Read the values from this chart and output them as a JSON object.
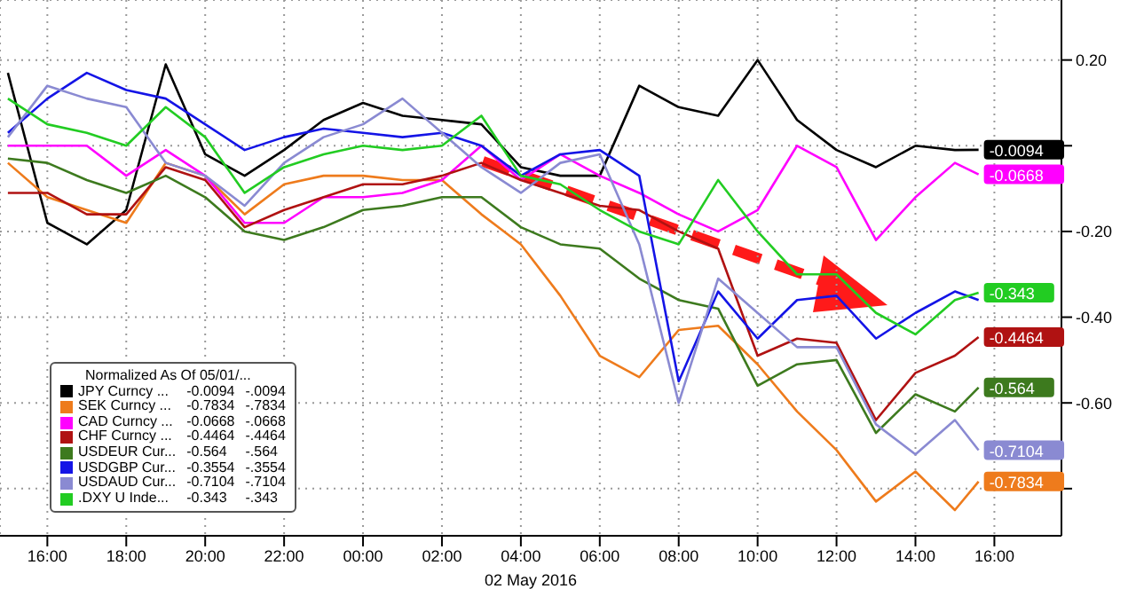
{
  "chart_data": {
    "type": "line",
    "xlabel": "02 May 2016",
    "legend_title": "Normalized As Of 05/01/...",
    "x": [
      "2016-05-01T15:00",
      "2016-05-01T16:00",
      "2016-05-01T17:00",
      "2016-05-01T18:00",
      "2016-05-01T19:00",
      "2016-05-01T20:00",
      "2016-05-01T21:00",
      "2016-05-01T22:00",
      "2016-05-01T23:00",
      "2016-05-02T00:00",
      "2016-05-02T01:00",
      "2016-05-02T02:00",
      "2016-05-02T03:00",
      "2016-05-02T04:00",
      "2016-05-02T05:00",
      "2016-05-02T06:00",
      "2016-05-02T07:00",
      "2016-05-02T08:00",
      "2016-05-02T09:00",
      "2016-05-02T10:00",
      "2016-05-02T11:00",
      "2016-05-02T12:00",
      "2016-05-02T13:00",
      "2016-05-02T14:00",
      "2016-05-02T15:00",
      "2016-05-02T15:36"
    ],
    "xlim": [
      "2016-05-01T14:48",
      "2016-05-02T17:42"
    ],
    "xticks": [
      {
        "value": "2016-05-01T16:00",
        "label": "16:00"
      },
      {
        "value": "2016-05-01T18:00",
        "label": "18:00"
      },
      {
        "value": "2016-05-01T20:00",
        "label": "20:00"
      },
      {
        "value": "2016-05-01T22:00",
        "label": "22:00"
      },
      {
        "value": "2016-05-02T00:00",
        "label": "00:00"
      },
      {
        "value": "2016-05-02T02:00",
        "label": "02:00"
      },
      {
        "value": "2016-05-02T04:00",
        "label": "04:00"
      },
      {
        "value": "2016-05-02T06:00",
        "label": "06:00"
      },
      {
        "value": "2016-05-02T08:00",
        "label": "08:00"
      },
      {
        "value": "2016-05-02T10:00",
        "label": "10:00"
      },
      {
        "value": "2016-05-02T12:00",
        "label": "12:00"
      },
      {
        "value": "2016-05-02T14:00",
        "label": "14:00"
      },
      {
        "value": "2016-05-02T16:00",
        "label": "16:00"
      }
    ],
    "ylim": [
      -0.91,
      0.34
    ],
    "yticks": [
      {
        "value": 0.2,
        "label": "0.20"
      },
      {
        "value": 0,
        "label": null
      },
      {
        "value": -0.2,
        "label": "-0.20"
      },
      {
        "value": -0.4,
        "label": "-0.40"
      },
      {
        "value": -0.6,
        "label": "-0.60"
      },
      {
        "value": -0.8,
        "label": null
      }
    ],
    "grid": true,
    "legend": "bottom left",
    "line_style": "solid",
    "series": [
      {
        "name": "JPY Curncy ...",
        "color": "#000000",
        "values": [
          0.17,
          -0.18,
          -0.23,
          -0.15,
          0.19,
          -0.02,
          -0.07,
          -0.01,
          0.06,
          0.1,
          0.07,
          0.06,
          0.05,
          -0.05,
          -0.07,
          -0.07,
          0.14,
          0.09,
          0.07,
          0.2,
          0.06,
          -0.01,
          -0.05,
          0,
          -0.01,
          -0.0094
        ],
        "value_labels": [
          null,
          null,
          null,
          null,
          null,
          null,
          null,
          null,
          null,
          null,
          null,
          null,
          null,
          null,
          null,
          null,
          null,
          null,
          null,
          null,
          null,
          null,
          null,
          null,
          null,
          "-0.0094"
        ]
      },
      {
        "name": "SEK Curncy ...",
        "color": "#ee7b1c",
        "values": [
          -0.04,
          -0.12,
          -0.15,
          -0.18,
          -0.04,
          -0.07,
          -0.16,
          -0.09,
          -0.07,
          -0.07,
          -0.08,
          -0.08,
          -0.16,
          -0.23,
          -0.35,
          -0.49,
          -0.54,
          -0.43,
          -0.42,
          -0.51,
          -0.62,
          -0.71,
          -0.83,
          -0.76,
          -0.85,
          -0.7834
        ],
        "value_labels": [
          null,
          null,
          null,
          null,
          null,
          null,
          null,
          null,
          null,
          null,
          null,
          null,
          null,
          null,
          null,
          null,
          null,
          null,
          null,
          null,
          null,
          null,
          null,
          null,
          null,
          "-0.7834"
        ]
      },
      {
        "name": "CAD Curncy ...",
        "color": "#ff00ff",
        "values": [
          0,
          0,
          0,
          -0.07,
          -0.01,
          -0.07,
          -0.18,
          -0.18,
          -0.12,
          -0.12,
          -0.11,
          -0.08,
          0,
          -0.08,
          -0.02,
          -0.07,
          -0.11,
          -0.16,
          -0.2,
          -0.15,
          0,
          -0.05,
          -0.22,
          -0.12,
          -0.04,
          -0.0668
        ],
        "value_labels": [
          null,
          null,
          null,
          null,
          null,
          null,
          null,
          null,
          null,
          null,
          null,
          null,
          null,
          null,
          null,
          null,
          null,
          null,
          null,
          null,
          null,
          null,
          null,
          null,
          null,
          "-0.0668"
        ]
      },
      {
        "name": "CHF Curncy ...",
        "color": "#b01212",
        "values": [
          -0.11,
          -0.11,
          -0.16,
          -0.16,
          -0.05,
          -0.08,
          -0.19,
          -0.15,
          -0.12,
          -0.09,
          -0.09,
          -0.07,
          -0.04,
          -0.08,
          -0.11,
          -0.14,
          -0.15,
          -0.2,
          -0.24,
          -0.49,
          -0.45,
          -0.46,
          -0.64,
          -0.53,
          -0.49,
          -0.4464
        ],
        "value_labels": [
          null,
          null,
          null,
          null,
          null,
          null,
          null,
          null,
          null,
          null,
          null,
          null,
          null,
          null,
          null,
          null,
          null,
          null,
          null,
          null,
          null,
          null,
          null,
          null,
          null,
          "-0.4464"
        ]
      },
      {
        "name": "USDEUR Cur...",
        "color": "#3d7a1e",
        "values": [
          -0.03,
          -0.04,
          -0.08,
          -0.11,
          -0.07,
          -0.12,
          -0.2,
          -0.22,
          -0.19,
          -0.15,
          -0.14,
          -0.12,
          -0.12,
          -0.19,
          -0.23,
          -0.24,
          -0.31,
          -0.36,
          -0.38,
          -0.56,
          -0.51,
          -0.5,
          -0.67,
          -0.58,
          -0.62,
          -0.564
        ],
        "value_labels": [
          null,
          null,
          null,
          null,
          null,
          null,
          null,
          null,
          null,
          null,
          null,
          null,
          null,
          null,
          null,
          null,
          null,
          null,
          null,
          null,
          null,
          null,
          null,
          null,
          null,
          "-0.564"
        ]
      },
      {
        "name": "USDGBP Cur...",
        "color": "#1414e6",
        "values": [
          0.03,
          0.11,
          0.17,
          0.13,
          0.11,
          0.05,
          -0.01,
          0.02,
          0.04,
          0.03,
          0.02,
          0.03,
          0,
          -0.07,
          -0.02,
          -0.01,
          -0.07,
          -0.55,
          -0.34,
          -0.45,
          -0.36,
          -0.35,
          -0.45,
          -0.39,
          -0.34,
          -0.36
        ]
      },
      {
        "name": "USDAUD Cur...",
        "color": "#8a8ad2",
        "values": [
          0.02,
          0.14,
          0.11,
          0.09,
          -0.04,
          -0.07,
          -0.14,
          -0.04,
          0.02,
          0.05,
          0.11,
          0.03,
          -0.05,
          -0.11,
          -0.04,
          -0.02,
          -0.23,
          -0.6,
          -0.31,
          -0.39,
          -0.47,
          -0.47,
          -0.65,
          -0.72,
          -0.64,
          -0.7104
        ],
        "value_labels": [
          null,
          null,
          null,
          null,
          null,
          null,
          null,
          null,
          null,
          null,
          null,
          null,
          null,
          null,
          null,
          null,
          null,
          null,
          null,
          null,
          null,
          null,
          null,
          null,
          null,
          "-0.7104"
        ]
      },
      {
        "name": ".DXY U Inde...",
        "color": "#22cc22",
        "values": [
          0.11,
          0.05,
          0.03,
          0,
          0.09,
          0.02,
          -0.11,
          -0.05,
          -0.02,
          0,
          -0.01,
          0,
          0.07,
          -0.07,
          -0.09,
          -0.15,
          -0.2,
          -0.23,
          -0.08,
          -0.2,
          -0.3,
          -0.3,
          -0.39,
          -0.44,
          -0.36,
          -0.343
        ],
        "value_labels": [
          null,
          null,
          null,
          null,
          null,
          null,
          null,
          null,
          null,
          null,
          null,
          null,
          null,
          null,
          null,
          null,
          null,
          null,
          null,
          null,
          null,
          null,
          null,
          null,
          null,
          "-0.343"
        ]
      }
    ],
    "annotations": [
      "-0.0094",
      "-.0094",
      "-0.7834",
      "-.7834",
      "-0.0668",
      "-.0668",
      "-0.4464",
      "-.4464",
      "-0.564",
      "-.564",
      "-0.3554",
      "-.3554",
      "-0.7104",
      "-.7104",
      "-0.343",
      "-.343"
    ]
  }
}
